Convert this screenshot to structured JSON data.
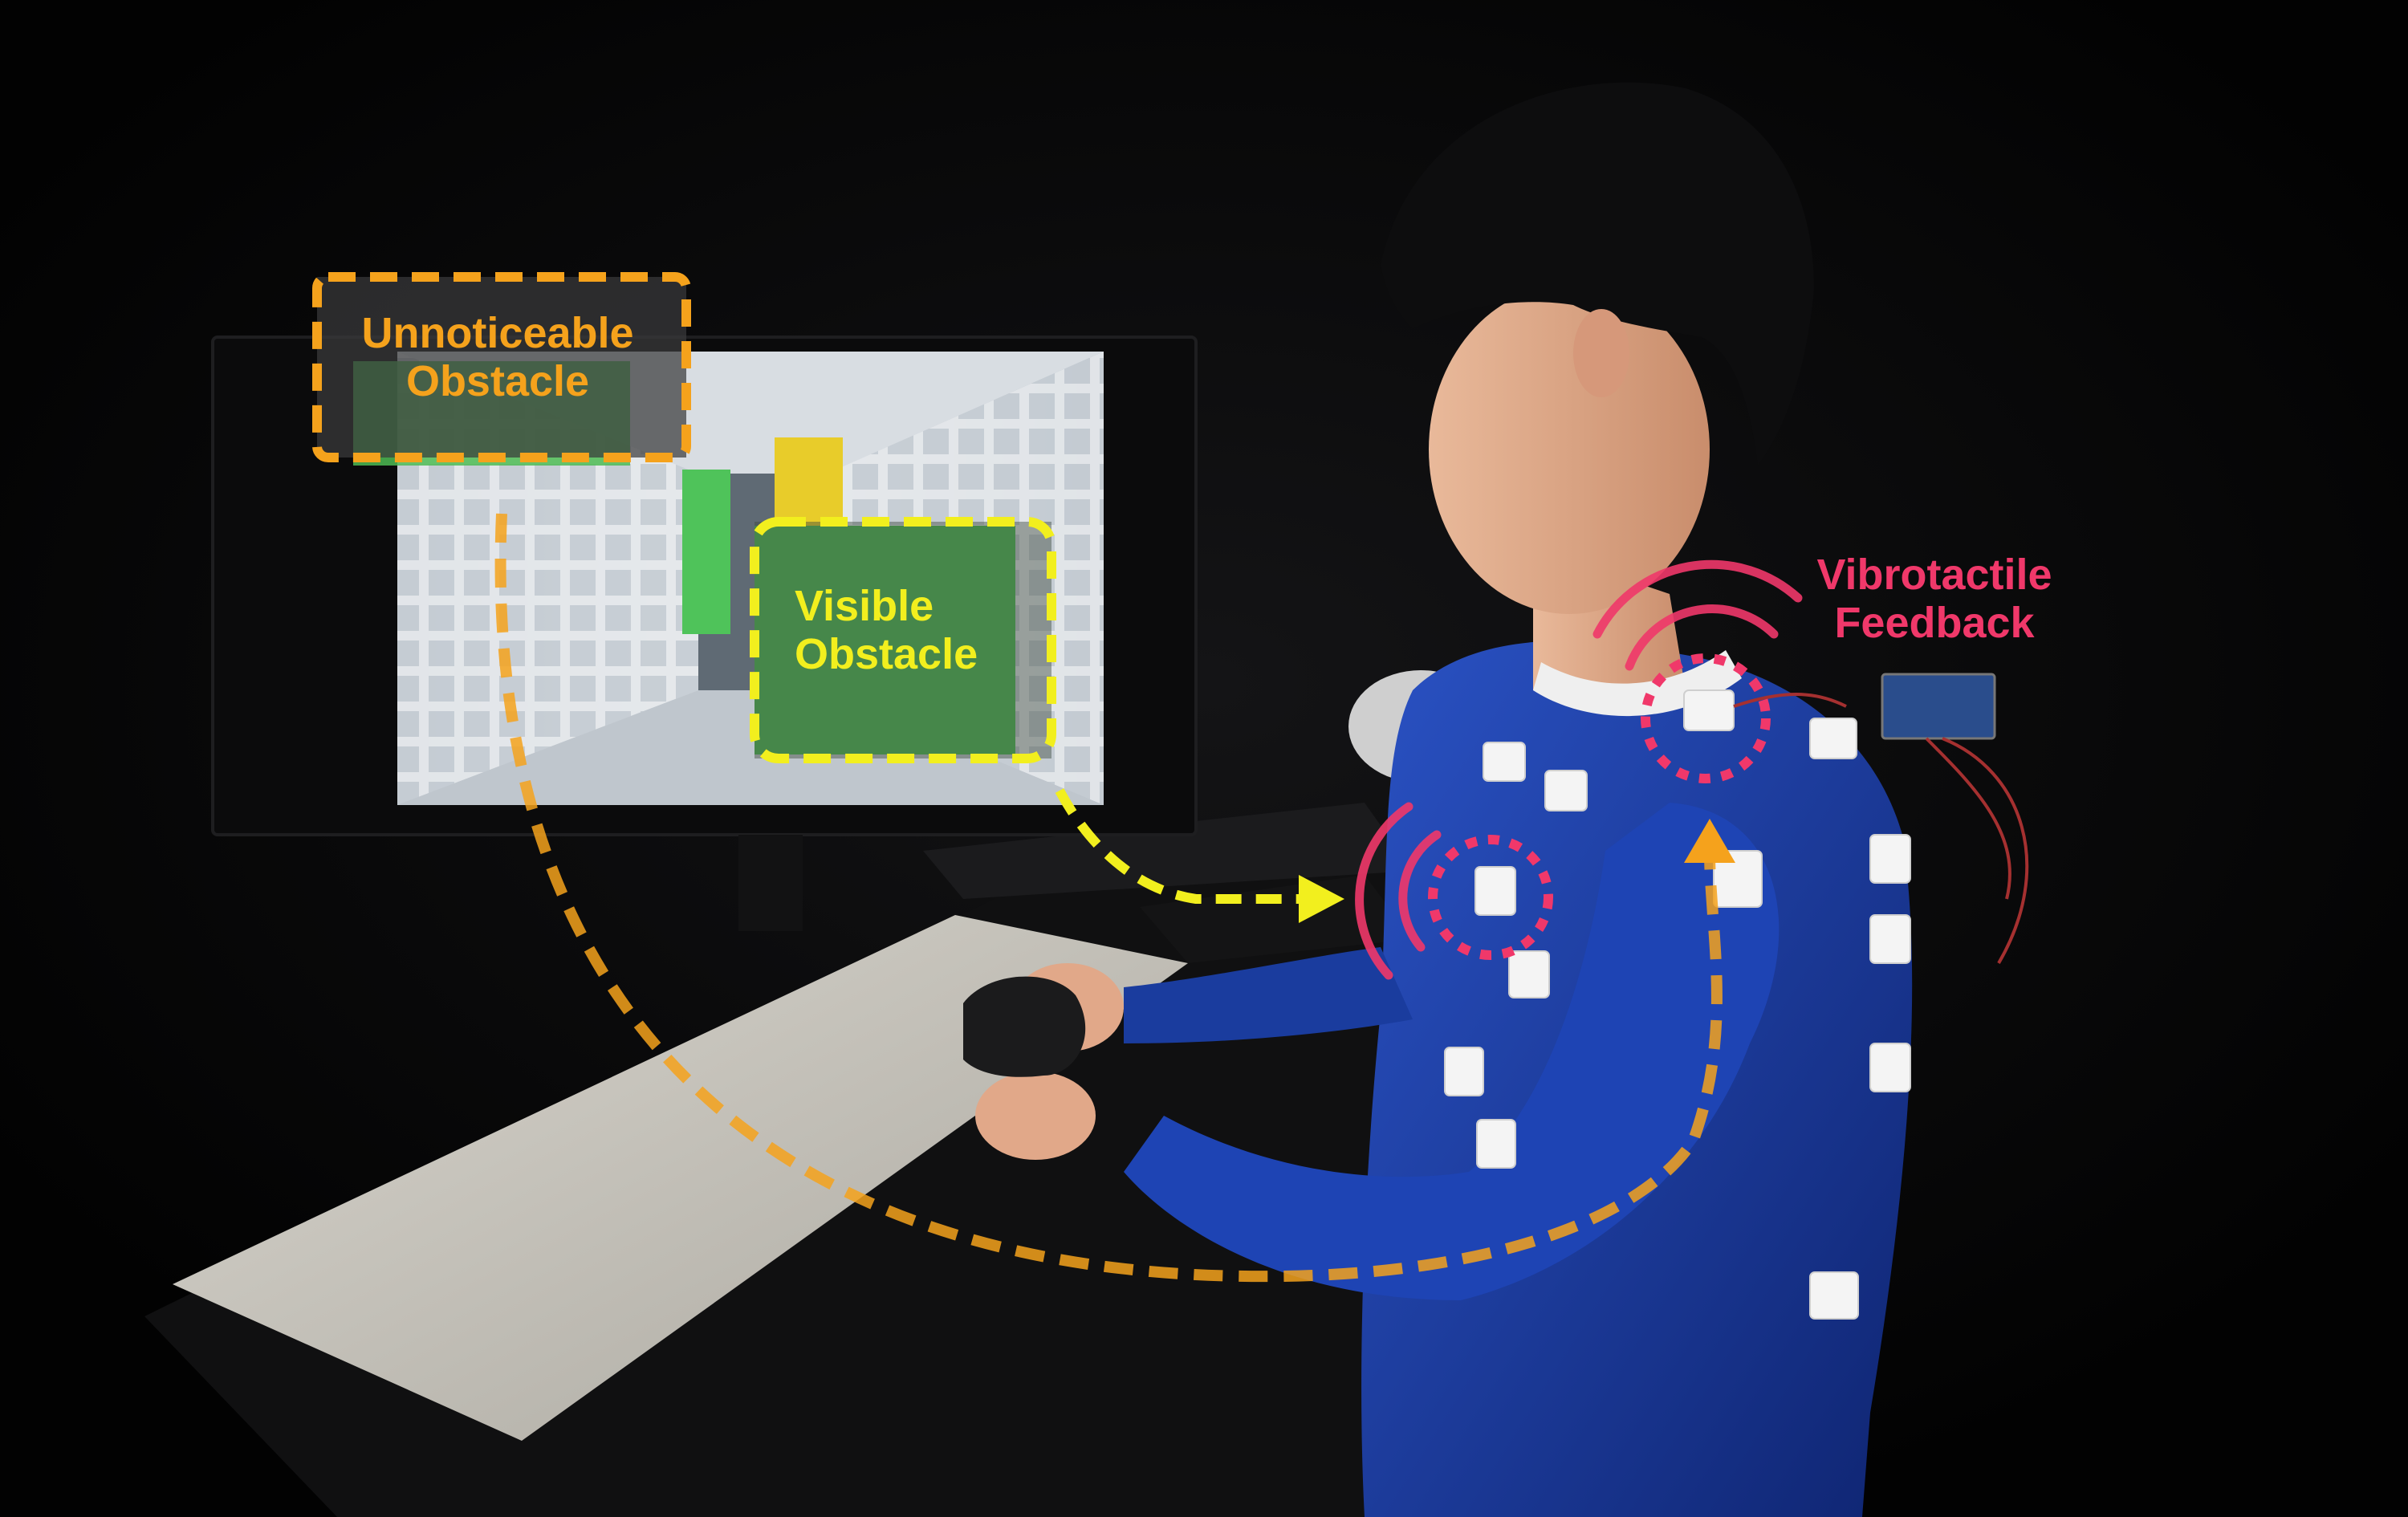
{
  "labels": {
    "unnoticeable_obstacle": {
      "line1": "Unnoticeable",
      "line2": "Obstacle"
    },
    "visible_obstacle": {
      "line1": "Visible",
      "line2": "Obstacle"
    },
    "vibrotactile_feedback": {
      "line1": "Vibrotactile",
      "line2": "Feedback"
    }
  },
  "colors": {
    "unnoticeable": "#f5a21c",
    "visible": "#f2ef1e",
    "vibrotactile": "#f0386a",
    "background": "#050505",
    "shirt": "#1c3fa8",
    "monitor_screen": "#cfd6dc",
    "obstacle_green": "#4dbb54",
    "obstacle_yellow": "#e8cc2a",
    "desk_mat": "#cbc8bf"
  },
  "icons": [
    "arrow-icon",
    "vibration-waves-icon",
    "actuator-icon",
    "controller-icon"
  ]
}
